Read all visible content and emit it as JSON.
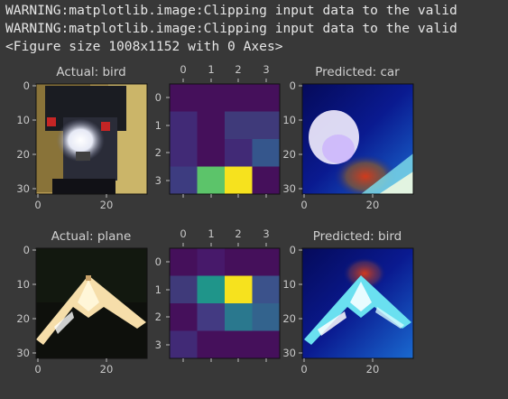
{
  "console": {
    "lines": [
      "WARNING:matplotlib.image:Clipping input data to the valid",
      "WARNING:matplotlib.image:Clipping input data to the valid",
      "<Figure size 1008x1152 with 0 Axes>"
    ]
  },
  "figure": {
    "row1": {
      "actual_title": "Actual: bird",
      "predicted_title": "Predicted: car",
      "heatmap": [
        [
          "#45105b",
          "#45105b",
          "#45105b",
          "#45105b"
        ],
        [
          "#412a76",
          "#45105b",
          "#3f3a7a",
          "#3f3a7a"
        ],
        [
          "#412a76",
          "#45105b",
          "#412a76",
          "#35568c"
        ],
        [
          "#3d3c80",
          "#5cc46a",
          "#f6e21e",
          "#45105b"
        ]
      ]
    },
    "row2": {
      "actual_title": "Actual: plane",
      "predicted_title": "Predicted: bird",
      "heatmap": [
        [
          "#45105b",
          "#47196a",
          "#45105b",
          "#45105b"
        ],
        [
          "#3f3a7a",
          "#1f958a",
          "#f6e21e",
          "#3b528b"
        ],
        [
          "#45105b",
          "#433a82",
          "#2a788e",
          "#33638d"
        ],
        [
          "#412a76",
          "#45105b",
          "#45105b",
          "#45105b"
        ]
      ]
    },
    "image_ticks_y": [
      "0",
      "10",
      "20",
      "30"
    ],
    "image_ticks_x": [
      "0",
      "20"
    ],
    "heatmap_ticks": [
      "0",
      "1",
      "2",
      "3"
    ]
  }
}
